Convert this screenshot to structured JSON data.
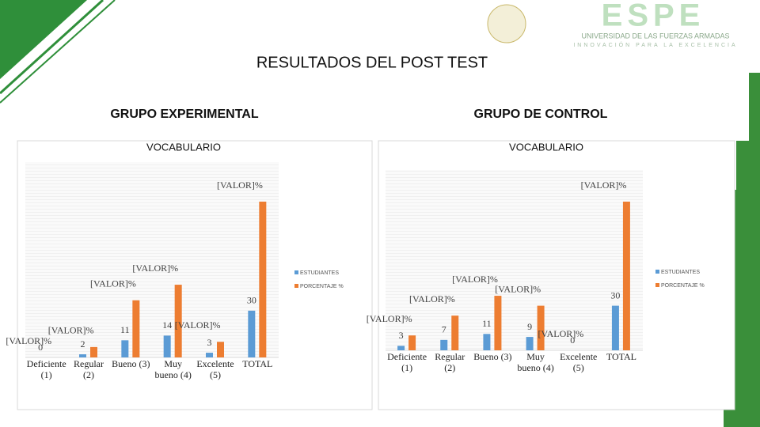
{
  "slide": {
    "title": "RESULTADOS DEL POST TEST",
    "logo_name": "ESPE",
    "logo_line1": "UNIVERSIDAD DE LAS FUERZAS ARMADAS",
    "logo_line2": "INNOVACIÓN PARA LA EXCELENCIA",
    "group_left": "GRUPO EXPERIMENTAL",
    "group_right": "GRUPO DE CONTROL"
  },
  "chart_data": [
    {
      "type": "bar",
      "title": "VOCABULARIO",
      "categories": [
        "Deficiente (1)",
        "Regular (2)",
        "Bueno (3)",
        "Muy bueno (4)",
        "Excelente (5)",
        "TOTAL"
      ],
      "series": [
        {
          "name": "ESTUDIANTES",
          "color": "#5b9bd5",
          "values": [
            0,
            2,
            11,
            14,
            3,
            30
          ]
        },
        {
          "name": "PORCENTAJE %",
          "color": "#ed7d31",
          "values": [
            0,
            6.67,
            36.67,
            46.67,
            10,
            100
          ],
          "value_labels": [
            "[VALOR]%",
            "[VALOR]%",
            "[VALOR]%",
            "[VALOR]%",
            "[VALOR]%",
            "[VALOR]%"
          ]
        }
      ],
      "legend": "right"
    },
    {
      "type": "bar",
      "title": "VOCABULARIO",
      "categories": [
        "Deficiente (1)",
        "Regular (2)",
        "Bueno (3)",
        "Muy bueno (4)",
        "Excelente (5)",
        "TOTAL"
      ],
      "series": [
        {
          "name": "ESTUDIANTES",
          "color": "#5b9bd5",
          "values": [
            3,
            7,
            11,
            9,
            0,
            30
          ]
        },
        {
          "name": "PORCENTAJE %",
          "color": "#ed7d31",
          "values": [
            10,
            23.33,
            36.67,
            30,
            0,
            100
          ],
          "value_labels": [
            "[VALOR]%",
            "[VALOR]%",
            "[VALOR]%",
            "[VALOR]%",
            "[VALOR]%",
            "[VALOR]%"
          ]
        }
      ],
      "legend": "right"
    }
  ]
}
